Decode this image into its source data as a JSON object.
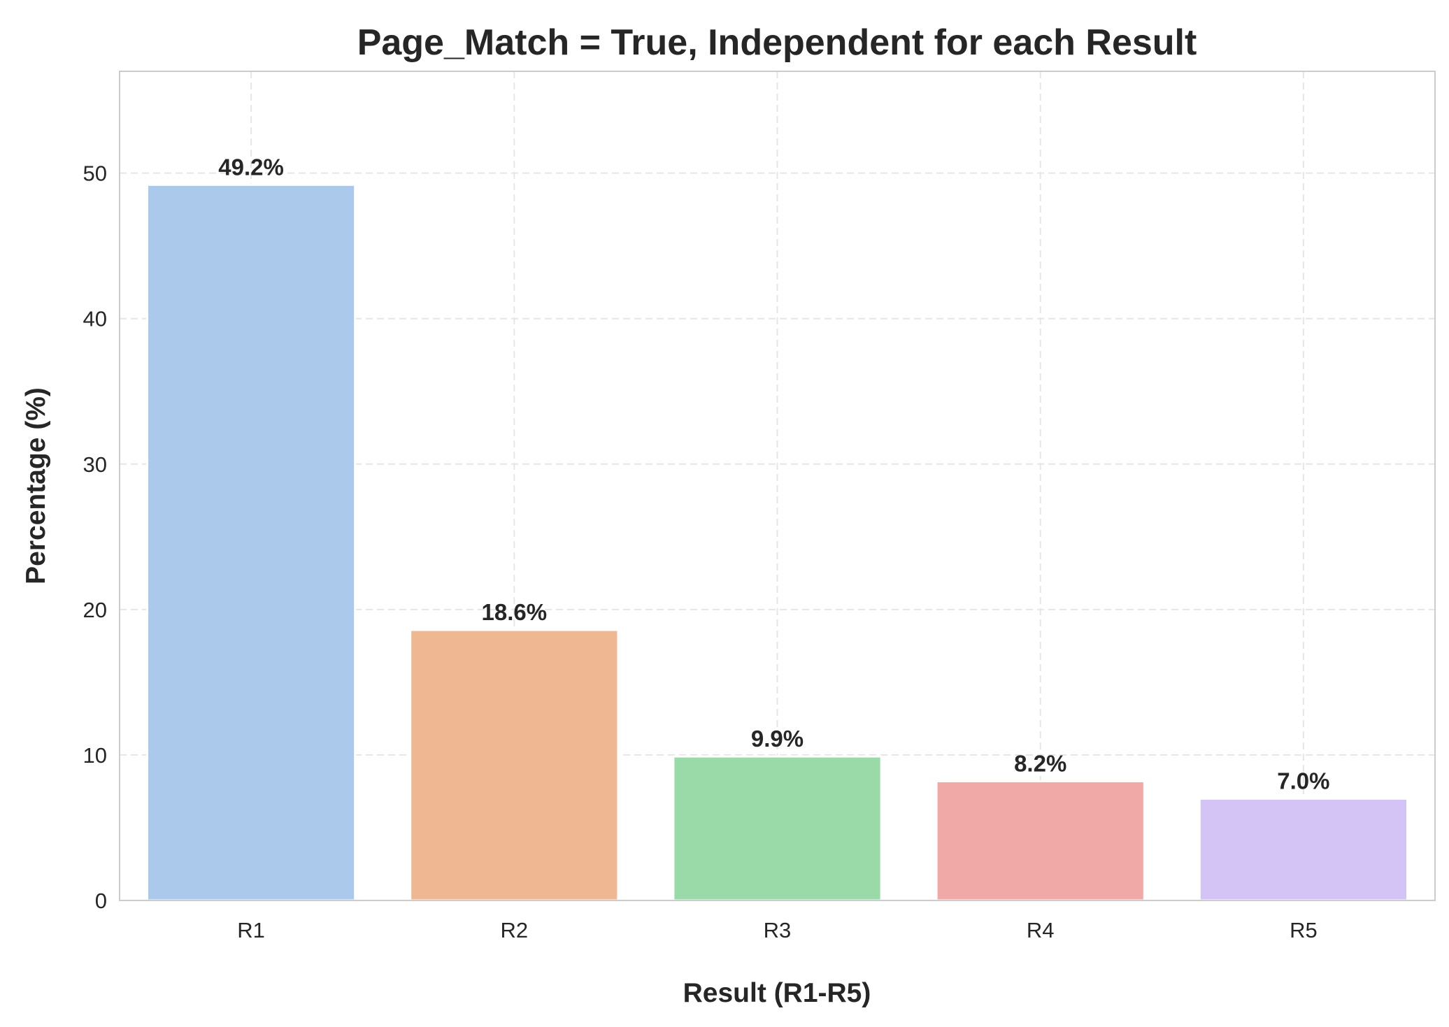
{
  "chart_data": {
    "type": "bar",
    "title": "Page_Match = True, Independent for each Result",
    "xlabel": "Result (R1-R5)",
    "ylabel": "Percentage (%)",
    "categories": [
      "R1",
      "R2",
      "R3",
      "R4",
      "R5"
    ],
    "values": [
      49.2,
      18.6,
      9.9,
      8.2,
      7.0
    ],
    "data_labels": [
      "49.2%",
      "18.6%",
      "9.9%",
      "8.2%",
      "7.0%"
    ],
    "colors": [
      "#abc9ea",
      "#efb792",
      "#9ad9a8",
      "#f1a9a8",
      "#d3c4f5"
    ],
    "ylim": [
      0,
      57
    ],
    "yticks": [
      0,
      10,
      20,
      30,
      40,
      50
    ],
    "grid": true
  }
}
